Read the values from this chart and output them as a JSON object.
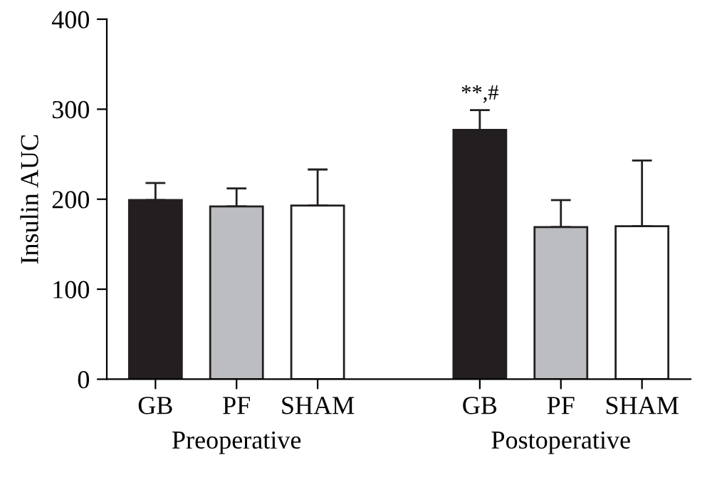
{
  "chart_data": {
    "type": "bar",
    "ylabel": "Insulin AUC",
    "categories": [
      "GB",
      "PF",
      "SHAM",
      null,
      "GB",
      "PF",
      "SHAM"
    ],
    "values": [
      199,
      192,
      193,
      null,
      277,
      169,
      170
    ],
    "colors": [
      "#231f20",
      "#bcbdc0",
      "#ffffff",
      null,
      "#231f20",
      "#bcbdc0",
      "#ffffff"
    ],
    "errors": [
      [
        199,
        218
      ],
      [
        192,
        212
      ],
      [
        193,
        233
      ],
      null,
      [
        277,
        299
      ],
      [
        169,
        199
      ],
      [
        170,
        243
      ]
    ],
    "ylim": [
      0,
      400
    ],
    "yticks": [
      0,
      100,
      200,
      300,
      400
    ],
    "grid": false,
    "legend": false,
    "annotations": [
      "Preoperative",
      "Postoperative",
      "**,#"
    ]
  }
}
